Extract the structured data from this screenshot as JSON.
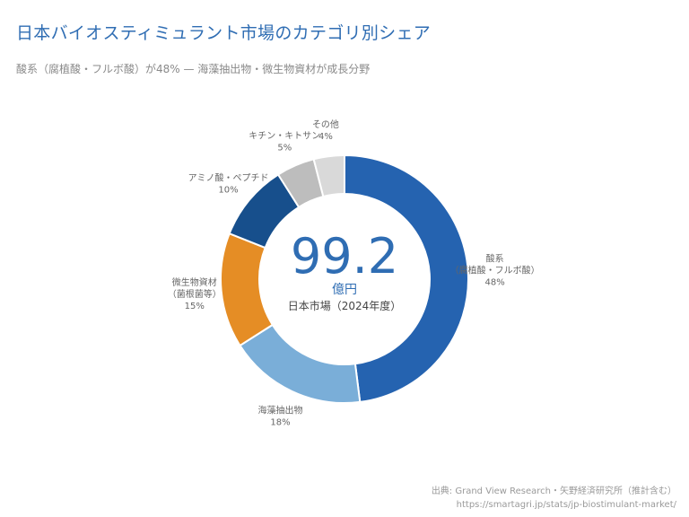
{
  "header": {
    "title": "日本バイオスティミュラント市場のカテゴリ別シェア",
    "subtitle": "酸系（腐植酸・フルボ酸）が48% — 海藻抽出物・微生物資材が成長分野"
  },
  "center": {
    "value": "99.2",
    "unit": "億円",
    "label": "日本市場（2024年度）"
  },
  "source": {
    "line1": "出典: Grand View Research・矢野経済研究所（推計含む）",
    "line2": "https://smartagri.jp/stats/jp-biostimulant-market/"
  },
  "chart_data": {
    "type": "pie",
    "donut": true,
    "slices": [
      {
        "label": [
          "酸系",
          "（腐植酸・フルボ酸）"
        ],
        "value": 48,
        "value_label": "48%",
        "color": "#2563b0"
      },
      {
        "label": [
          "海藻抽出物"
        ],
        "value": 18,
        "value_label": "18%",
        "color": "#7aaed8"
      },
      {
        "label": [
          "微生物資材",
          "（菌根菌等）"
        ],
        "value": 15,
        "value_label": "15%",
        "color": "#e58d25"
      },
      {
        "label": [
          "アミノ酸・ペプチド"
        ],
        "value": 10,
        "value_label": "10%",
        "color": "#174f8c"
      },
      {
        "label": [
          "キチン・キトサン"
        ],
        "value": 5,
        "value_label": "5%",
        "color": "#bdbdbd"
      },
      {
        "label": [
          "その他"
        ],
        "value": 4,
        "value_label": "4%",
        "color": "#d9d9d9"
      }
    ]
  }
}
